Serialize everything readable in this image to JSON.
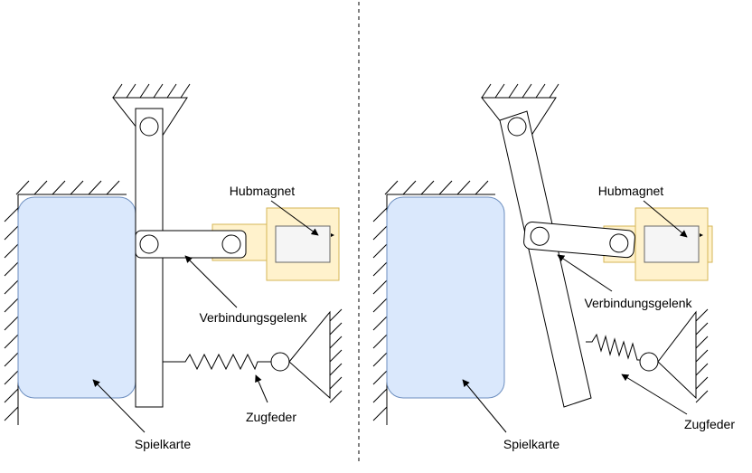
{
  "labels": {
    "hubmagnet": "Hubmagnet",
    "verbindungsgelenk": "Verbindungsgelenk",
    "zugfeder": "Zugfeder",
    "spielkarte": "Spielkarte"
  },
  "colors": {
    "card_fill": "#dae8fc",
    "card_stroke": "#6c8ebf",
    "magnet_fill": "#fff2cc",
    "magnet_stroke": "#d6b656",
    "magnet_core": "#f5f5f5",
    "line": "#000000"
  }
}
